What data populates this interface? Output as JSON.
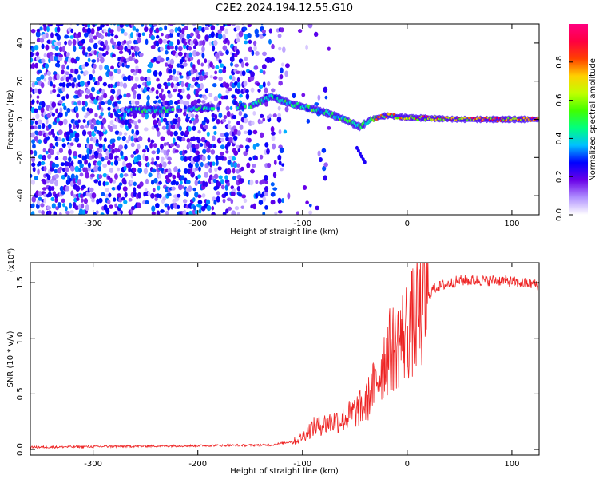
{
  "title": "C2E2.2024.194.12.55.G10",
  "chart_data": [
    {
      "type": "heatmap",
      "xlabel": "Height of straight line (km)",
      "ylabel": "Frequency (Hz)",
      "xlim": [
        -360,
        126
      ],
      "ylim": [
        -50,
        50
      ],
      "xticks": [
        -300,
        -200,
        -100,
        0,
        100
      ],
      "yticks": [
        -40,
        -20,
        0,
        20,
        40
      ],
      "colorbar": {
        "label": "Normalized spectral amplitude",
        "range": [
          0.0,
          1.0
        ],
        "ticks": [
          "0.0",
          "0.2",
          "0.4",
          "0.6",
          "0.8"
        ],
        "colors": [
          "#ffffff",
          "#b090ff",
          "#6a00e8",
          "#0000ff",
          "#00c0ff",
          "#00ff80",
          "#40ff00",
          "#c0ff00",
          "#ffd000",
          "#ff4000",
          "#ff0040",
          "#ff0080"
        ]
      },
      "ridge": [
        {
          "x": -270,
          "y": 5
        },
        {
          "x": -230,
          "y": 5
        },
        {
          "x": -200,
          "y": 6
        },
        {
          "x": -150,
          "y": 7
        },
        {
          "x": -130,
          "y": 12
        },
        {
          "x": -110,
          "y": 8
        },
        {
          "x": -80,
          "y": 4
        },
        {
          "x": -60,
          "y": 0
        },
        {
          "x": -45,
          "y": -4
        },
        {
          "x": -35,
          "y": 0
        },
        {
          "x": -20,
          "y": 2
        },
        {
          "x": 0,
          "y": 1
        },
        {
          "x": 50,
          "y": 0
        },
        {
          "x": 126,
          "y": 0
        }
      ]
    },
    {
      "type": "line",
      "xlabel": "Height of straight line (km)",
      "ylabel": "SNR (10 * v/v)",
      "y_multiplier": "(x10⁴)",
      "xlim": [
        -360,
        126
      ],
      "ylim": [
        -0.05,
        1.68
      ],
      "xticks": [
        -300,
        -200,
        -100,
        0,
        100
      ],
      "yticks": [
        "0.0",
        "0.5",
        "1.0",
        "1.5"
      ],
      "line_color": "#ee2222",
      "trend": [
        {
          "x": -360,
          "y": 0.02
        },
        {
          "x": -250,
          "y": 0.03
        },
        {
          "x": -130,
          "y": 0.04
        },
        {
          "x": -105,
          "y": 0.08
        },
        {
          "x": -90,
          "y": 0.2
        },
        {
          "x": -60,
          "y": 0.28
        },
        {
          "x": -40,
          "y": 0.4
        },
        {
          "x": -30,
          "y": 0.6
        },
        {
          "x": -20,
          "y": 0.85
        },
        {
          "x": -10,
          "y": 0.95
        },
        {
          "x": 10,
          "y": 1.2
        },
        {
          "x": 25,
          "y": 1.45
        },
        {
          "x": 50,
          "y": 1.52
        },
        {
          "x": 90,
          "y": 1.52
        },
        {
          "x": 126,
          "y": 1.48
        }
      ]
    }
  ]
}
